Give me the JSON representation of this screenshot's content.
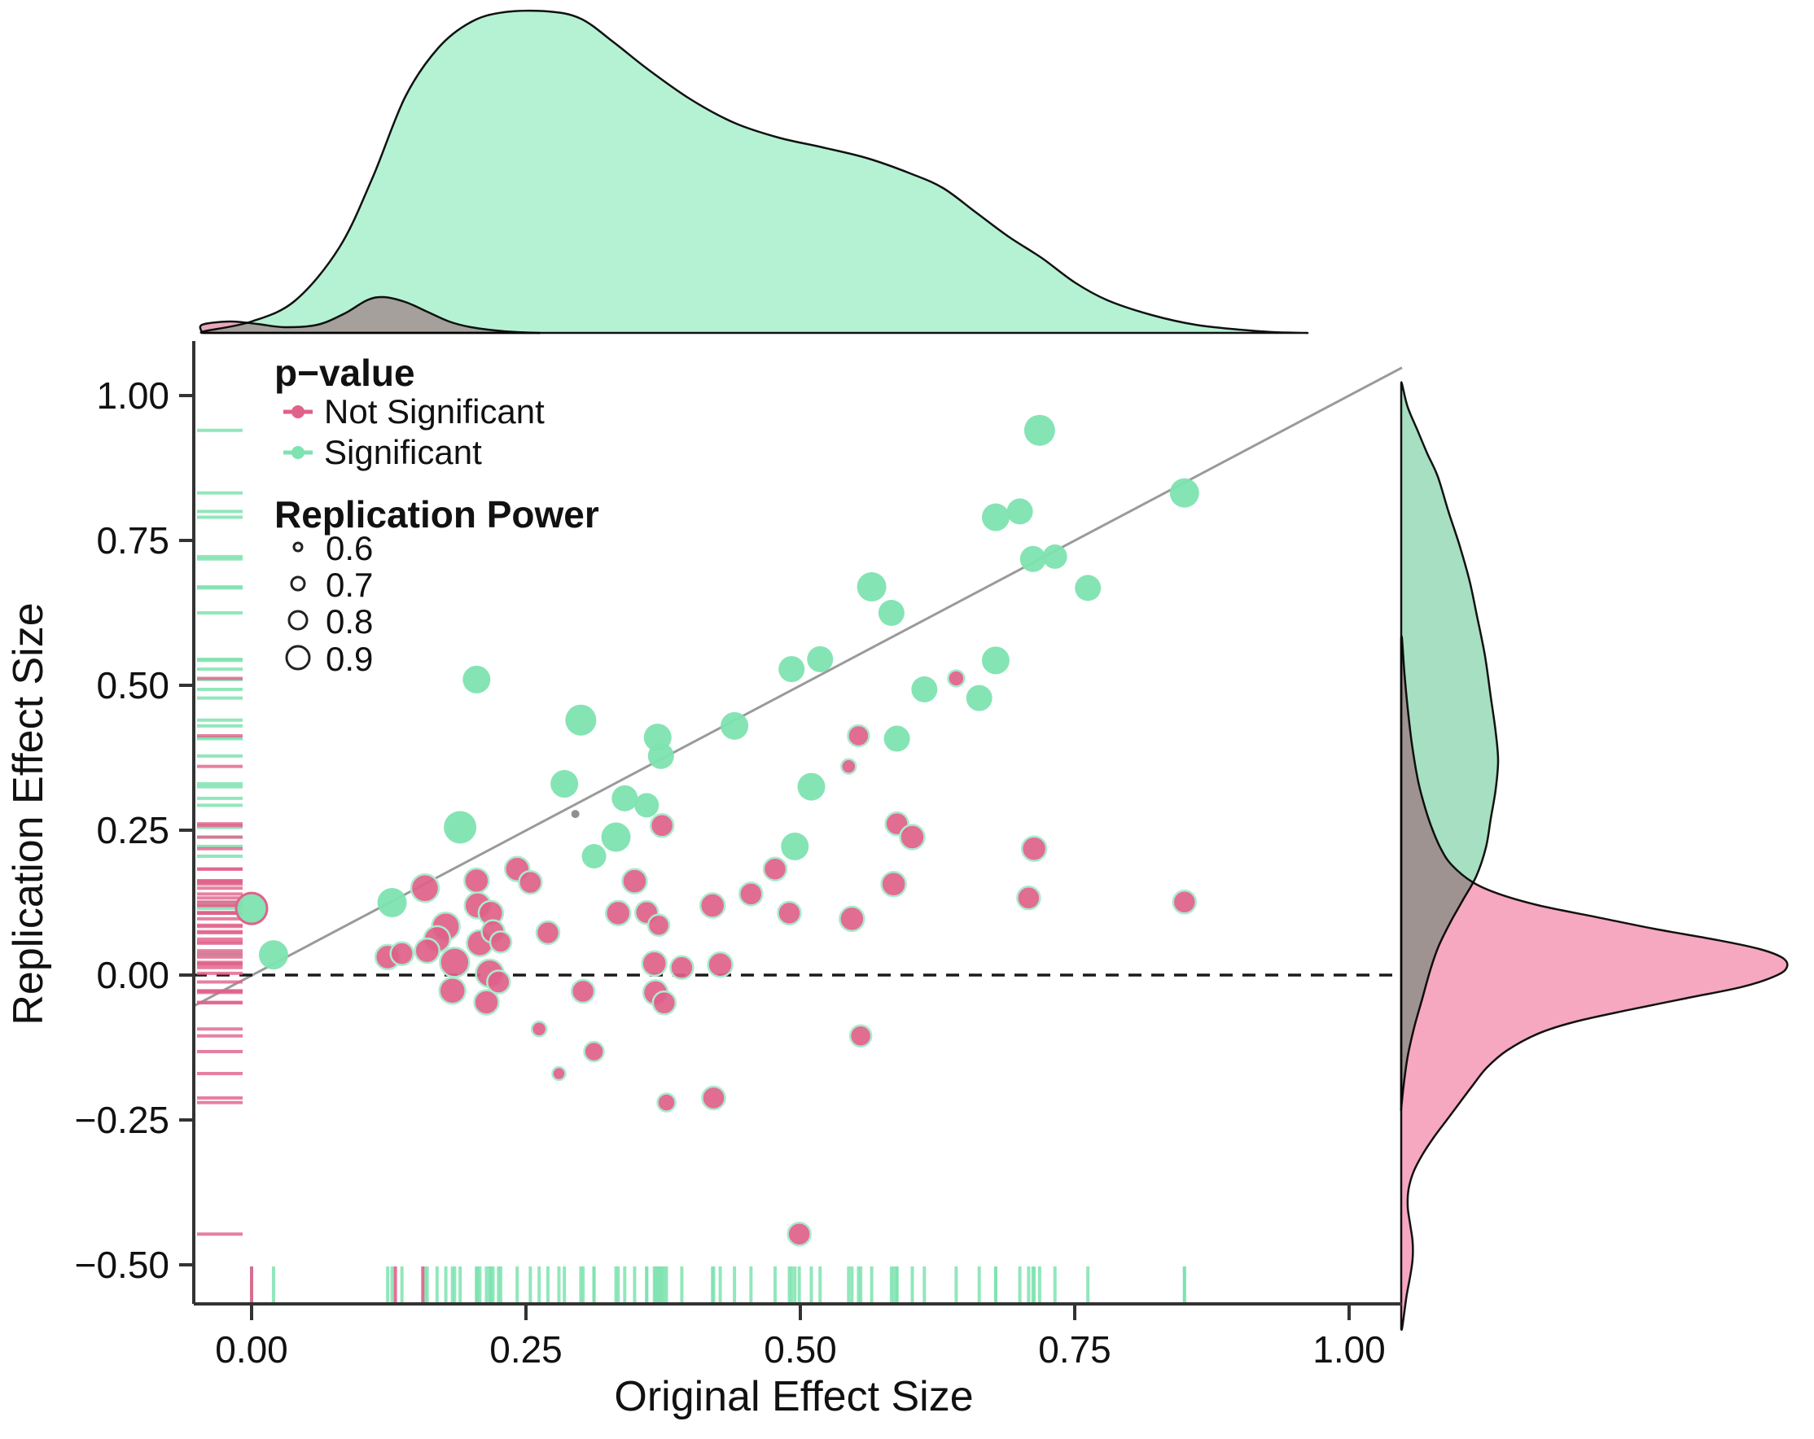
{
  "chart_data": {
    "type": "scatter",
    "title": "",
    "xlabel": "Original Effect Size",
    "ylabel": "Replication Effect Size",
    "xlim": [
      -0.053,
      1.048
    ],
    "ylim": [
      -0.57,
      1.09
    ],
    "grid": false,
    "x_ticks": [
      0.0,
      0.25,
      0.5,
      0.75,
      1.0
    ],
    "x_tick_labels": [
      "0.00",
      "0.25",
      "0.50",
      "0.75",
      "1.00"
    ],
    "y_ticks": [
      1.0,
      0.75,
      0.5,
      0.25,
      0.0,
      -0.25,
      -0.5
    ],
    "y_tick_labels": [
      "1.00",
      "0.75",
      "0.50",
      "0.25",
      "0.00",
      "−0.25",
      "−0.50"
    ],
    "reference_lines": {
      "identity_line": true,
      "zero_line_y": 0.0
    },
    "legend": {
      "p_value": {
        "title": "p−value",
        "items": [
          {
            "label": "Not Significant",
            "color": "#E0618A"
          },
          {
            "label": "Significant",
            "color": "#7EE3B0"
          }
        ]
      },
      "replication_power": {
        "title": "Replication Power",
        "items": [
          {
            "label": "0.6",
            "radius": 5
          },
          {
            "label": "0.7",
            "radius": 8
          },
          {
            "label": "0.8",
            "radius": 11
          },
          {
            "label": "0.9",
            "radius": 14
          }
        ]
      }
    },
    "colors": {
      "significant": "#7EE3B0",
      "not_significant": "#E0618A",
      "not_significant_stroke": "#ABEBCD",
      "gray_point": "#909090",
      "identity_line": "#9a9a9a",
      "zero_line": "#1a1a1a",
      "axis": "#333333",
      "top_density_significant": "#B5F2D4",
      "top_density_not_significant": "#E8A9BC",
      "right_density_significant": "#A6DFC1",
      "right_density_not_significant": "#F5A8C0",
      "density_outline": "#111111"
    },
    "series": [
      {
        "name": "Significant",
        "points": [
          [
            0.0,
            0.115,
            19
          ],
          [
            0.02,
            0.035,
            18
          ],
          [
            0.128,
            0.125,
            18
          ],
          [
            0.19,
            0.255,
            20
          ],
          [
            0.205,
            0.51,
            17
          ],
          [
            0.3,
            0.44,
            19
          ],
          [
            0.285,
            0.33,
            17
          ],
          [
            0.37,
            0.41,
            17
          ],
          [
            0.373,
            0.378,
            16
          ],
          [
            0.44,
            0.43,
            17
          ],
          [
            0.332,
            0.238,
            18
          ],
          [
            0.312,
            0.205,
            15
          ],
          [
            0.34,
            0.305,
            16
          ],
          [
            0.36,
            0.293,
            15
          ],
          [
            0.495,
            0.222,
            17
          ],
          [
            0.51,
            0.325,
            17
          ],
          [
            0.518,
            0.545,
            16
          ],
          [
            0.492,
            0.528,
            16
          ],
          [
            0.588,
            0.408,
            16
          ],
          [
            0.613,
            0.493,
            16
          ],
          [
            0.663,
            0.478,
            16
          ],
          [
            0.678,
            0.543,
            17
          ],
          [
            0.565,
            0.67,
            18
          ],
          [
            0.583,
            0.625,
            16
          ],
          [
            0.678,
            0.79,
            17
          ],
          [
            0.7,
            0.8,
            16
          ],
          [
            0.712,
            0.718,
            16
          ],
          [
            0.732,
            0.722,
            15
          ],
          [
            0.762,
            0.668,
            16
          ],
          [
            0.718,
            0.94,
            19
          ],
          [
            0.85,
            0.832,
            18
          ]
        ]
      },
      {
        "name": "Not Significant",
        "points": [
          [
            0.158,
            0.15,
            17
          ],
          [
            0.205,
            0.163,
            15
          ],
          [
            0.242,
            0.183,
            15
          ],
          [
            0.254,
            0.16,
            14
          ],
          [
            0.206,
            0.12,
            16
          ],
          [
            0.218,
            0.107,
            15
          ],
          [
            0.177,
            0.084,
            17
          ],
          [
            0.169,
            0.062,
            16
          ],
          [
            0.124,
            0.031,
            15
          ],
          [
            0.137,
            0.037,
            14
          ],
          [
            0.16,
            0.042,
            15
          ],
          [
            0.208,
            0.055,
            16
          ],
          [
            0.22,
            0.075,
            14
          ],
          [
            0.227,
            0.057,
            13
          ],
          [
            0.185,
            0.022,
            18
          ],
          [
            0.217,
            0.003,
            17
          ],
          [
            0.225,
            -0.012,
            14
          ],
          [
            0.183,
            -0.027,
            16
          ],
          [
            0.214,
            -0.047,
            15
          ],
          [
            0.27,
            0.073,
            14
          ],
          [
            0.302,
            -0.028,
            14
          ],
          [
            0.262,
            -0.093,
            9
          ],
          [
            0.28,
            -0.17,
            8
          ],
          [
            0.312,
            -0.132,
            12
          ],
          [
            0.378,
            -0.22,
            11
          ],
          [
            0.421,
            -0.212,
            14
          ],
          [
            0.368,
            -0.03,
            15
          ],
          [
            0.376,
            -0.048,
            14
          ],
          [
            0.367,
            0.02,
            15
          ],
          [
            0.392,
            0.013,
            14
          ],
          [
            0.427,
            0.018,
            15
          ],
          [
            0.334,
            0.107,
            15
          ],
          [
            0.36,
            0.108,
            14
          ],
          [
            0.371,
            0.086,
            13
          ],
          [
            0.349,
            0.162,
            15
          ],
          [
            0.374,
            0.258,
            14
          ],
          [
            0.42,
            0.12,
            15
          ],
          [
            0.455,
            0.14,
            14
          ],
          [
            0.477,
            0.183,
            14
          ],
          [
            0.49,
            0.107,
            14
          ],
          [
            0.547,
            0.097,
            15
          ],
          [
            0.588,
            0.261,
            14
          ],
          [
            0.602,
            0.238,
            15
          ],
          [
            0.585,
            0.157,
            15
          ],
          [
            0.553,
            0.413,
            13
          ],
          [
            0.544,
            0.36,
            9
          ],
          [
            0.642,
            0.512,
            10
          ],
          [
            0.555,
            -0.105,
            13
          ],
          [
            0.499,
            -0.447,
            14
          ],
          [
            0.713,
            0.218,
            15
          ],
          [
            0.708,
            0.133,
            14
          ],
          [
            0.85,
            0.126,
            14
          ]
        ]
      }
    ],
    "other_points": [
      {
        "x": 0.295,
        "y": 0.278,
        "r": 5,
        "color": "#909090"
      }
    ],
    "marginal_top": {
      "significant_density": [
        [
          -0.043,
          2
        ],
        [
          0.0,
          14
        ],
        [
          0.04,
          40
        ],
        [
          0.08,
          105
        ],
        [
          0.11,
          190
        ],
        [
          0.14,
          290
        ],
        [
          0.17,
          350
        ],
        [
          0.2,
          382
        ],
        [
          0.23,
          394
        ],
        [
          0.27,
          395
        ],
        [
          0.3,
          386
        ],
        [
          0.33,
          357
        ],
        [
          0.36,
          325
        ],
        [
          0.4,
          287
        ],
        [
          0.44,
          258
        ],
        [
          0.48,
          240
        ],
        [
          0.52,
          228
        ],
        [
          0.56,
          215
        ],
        [
          0.6,
          196
        ],
        [
          0.63,
          178
        ],
        [
          0.66,
          148
        ],
        [
          0.69,
          118
        ],
        [
          0.72,
          92
        ],
        [
          0.75,
          62
        ],
        [
          0.78,
          40
        ],
        [
          0.82,
          22
        ],
        [
          0.86,
          10
        ],
        [
          0.9,
          4
        ],
        [
          0.93,
          1
        ],
        [
          0.96,
          0
        ]
      ],
      "not_significant_density": [
        [
          -0.045,
          10
        ],
        [
          -0.02,
          14
        ],
        [
          0.005,
          11
        ],
        [
          0.03,
          7
        ],
        [
          0.06,
          10
        ],
        [
          0.085,
          24
        ],
        [
          0.105,
          40
        ],
        [
          0.12,
          44
        ],
        [
          0.14,
          38
        ],
        [
          0.16,
          26
        ],
        [
          0.18,
          14
        ],
        [
          0.2,
          7
        ],
        [
          0.23,
          2
        ],
        [
          0.26,
          0
        ]
      ]
    },
    "marginal_right": {
      "significant_density": [
        [
          1.02,
          1
        ],
        [
          0.98,
          8
        ],
        [
          0.94,
          20
        ],
        [
          0.9,
          32
        ],
        [
          0.86,
          45
        ],
        [
          0.8,
          58
        ],
        [
          0.74,
          72
        ],
        [
          0.68,
          84
        ],
        [
          0.62,
          93
        ],
        [
          0.55,
          103
        ],
        [
          0.48,
          110
        ],
        [
          0.42,
          116
        ],
        [
          0.37,
          119
        ],
        [
          0.32,
          116
        ],
        [
          0.27,
          110
        ],
        [
          0.22,
          104
        ],
        [
          0.17,
          92
        ],
        [
          0.13,
          76
        ],
        [
          0.09,
          60
        ],
        [
          0.05,
          46
        ],
        [
          0.01,
          36
        ],
        [
          -0.04,
          26
        ],
        [
          -0.09,
          16
        ],
        [
          -0.14,
          8
        ],
        [
          -0.19,
          3
        ],
        [
          -0.23,
          0
        ]
      ],
      "not_significant_density": [
        [
          0.58,
          1
        ],
        [
          0.52,
          4
        ],
        [
          0.46,
          8
        ],
        [
          0.4,
          13
        ],
        [
          0.34,
          20
        ],
        [
          0.3,
          27
        ],
        [
          0.26,
          36
        ],
        [
          0.22,
          48
        ],
        [
          0.19,
          62
        ],
        [
          0.16,
          88
        ],
        [
          0.14,
          120
        ],
        [
          0.12,
          170
        ],
        [
          0.1,
          240
        ],
        [
          0.08,
          310
        ],
        [
          0.06,
          390
        ],
        [
          0.045,
          440
        ],
        [
          0.03,
          468
        ],
        [
          0.015,
          474
        ],
        [
          0.0,
          462
        ],
        [
          -0.02,
          420
        ],
        [
          -0.04,
          350
        ],
        [
          -0.06,
          280
        ],
        [
          -0.08,
          215
        ],
        [
          -0.1,
          170
        ],
        [
          -0.13,
          130
        ],
        [
          -0.16,
          105
        ],
        [
          -0.19,
          88
        ],
        [
          -0.22,
          72
        ],
        [
          -0.25,
          56
        ],
        [
          -0.28,
          40
        ],
        [
          -0.31,
          26
        ],
        [
          -0.34,
          15
        ],
        [
          -0.37,
          9
        ],
        [
          -0.4,
          8
        ],
        [
          -0.43,
          11
        ],
        [
          -0.46,
          14
        ],
        [
          -0.49,
          14
        ],
        [
          -0.52,
          11
        ],
        [
          -0.55,
          7
        ],
        [
          -0.58,
          4
        ],
        [
          -0.61,
          1
        ]
      ]
    },
    "rug": {
      "x_not_significant_values": [
        0.0,
        0.131,
        0.156
      ]
    }
  }
}
